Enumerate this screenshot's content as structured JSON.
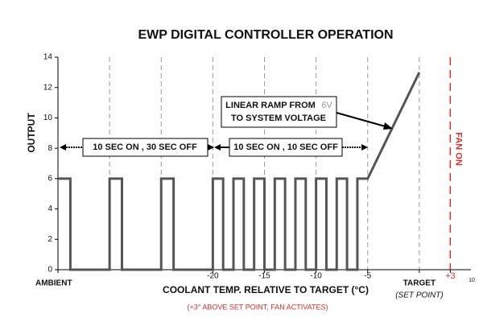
{
  "chart_data": {
    "type": "line",
    "title": "EWP DIGITAL CONTROLLER OPERATION",
    "y_label": "OUTPUT",
    "x_label": "COOLANT TEMP. RELATIVE TO TARGET (°C)",
    "subtitle": "(+3° ABOVE SET POINT, FAN ACTIVATES)",
    "x_target_sublabel": "(SET POINT)",
    "x_end_label": "10",
    "xlim": [
      -35,
      5
    ],
    "ylim": [
      0,
      14
    ],
    "yticks": [
      0,
      2,
      4,
      6,
      8,
      10,
      12,
      14
    ],
    "xticks": [
      {
        "value": -35,
        "label": "AMBIENT"
      },
      -20,
      -15,
      -10,
      -5,
      {
        "value": 0,
        "label": "TARGET"
      },
      {
        "value": 3,
        "label": "+3"
      }
    ],
    "xgrid": [
      -30,
      -25,
      -20,
      -15,
      -10,
      -5,
      0
    ],
    "grid": true,
    "series": [
      {
        "name": "OUTPUT",
        "color": "#555555",
        "x": [
          -35,
          -33.8,
          -33.8,
          -30,
          -30,
          -28.8,
          -28.8,
          -25,
          -25,
          -23.8,
          -23.8,
          -20,
          -20,
          -19,
          -19,
          -18,
          -18,
          -17,
          -17,
          -16,
          -16,
          -15,
          -15,
          -14,
          -14,
          -13,
          -13,
          -12,
          -12,
          -11,
          -11,
          -10,
          -10,
          -9,
          -9,
          -8,
          -8,
          -7,
          -7,
          -6,
          -6,
          -5,
          0
        ],
        "values": [
          6,
          6,
          0,
          0,
          6,
          6,
          0,
          0,
          6,
          6,
          0,
          0,
          6,
          6,
          0,
          0,
          6,
          6,
          0,
          0,
          6,
          6,
          0,
          0,
          6,
          6,
          0,
          0,
          6,
          6,
          0,
          0,
          6,
          6,
          0,
          0,
          6,
          6,
          0,
          0,
          6,
          6,
          13
        ]
      }
    ],
    "fan_line": {
      "x": 3,
      "label": "FAN ON",
      "color": "#d9302c"
    },
    "annotations": [
      {
        "text": "10 SEC ON , 30 SEC OFF"
      },
      {
        "text": "10 SEC ON , 10 SEC OFF"
      },
      {
        "text": "LINEAR RAMP FROM",
        "note": "6V",
        "text2": "TO SYSTEM VOLTAGE"
      }
    ]
  }
}
